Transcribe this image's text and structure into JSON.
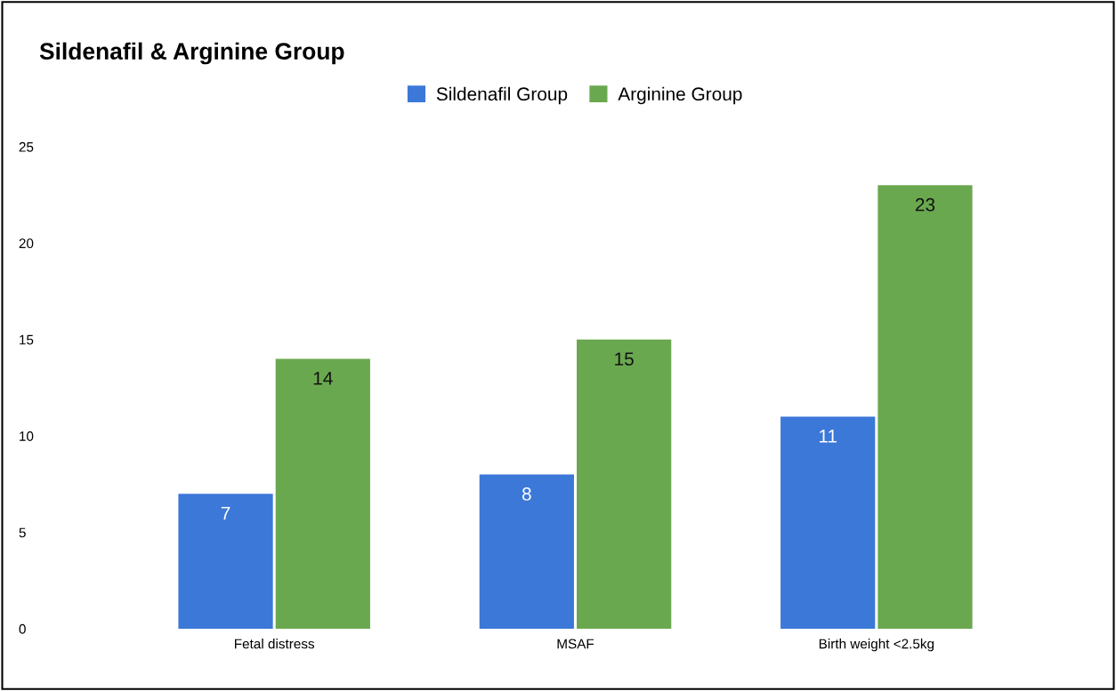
{
  "chart_data": {
    "type": "bar",
    "title": "Sildenafil & Arginine Group",
    "categories": [
      "Fetal distress",
      "MSAF",
      "Birth weight <2.5kg"
    ],
    "series": [
      {
        "name": "Sildenafil Group",
        "color": "#3c78d8",
        "values": [
          7,
          8,
          11
        ]
      },
      {
        "name": "Arginine Group",
        "color": "#6aa84f",
        "values": [
          14,
          15,
          23
        ]
      }
    ],
    "ylim": [
      0,
      25
    ],
    "yticks": [
      0,
      5,
      10,
      15,
      20,
      25
    ],
    "grid": false,
    "legend": "top",
    "data_labels": true
  }
}
